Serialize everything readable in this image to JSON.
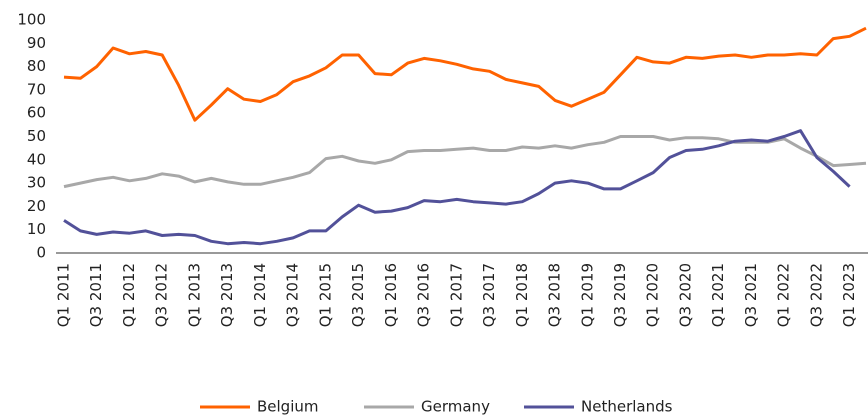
{
  "chart_data": {
    "type": "line",
    "categories": [
      "Q1 2011",
      null,
      "Q3 2011",
      null,
      "Q1 2012",
      null,
      "Q3 2012",
      null,
      "Q1 2013",
      null,
      "Q3 2013",
      null,
      "Q1 2014",
      null,
      "Q3 2014",
      null,
      "Q1 2015",
      null,
      "Q3 2015",
      null,
      "Q1 2016",
      null,
      "Q3 2016",
      null,
      "Q1 2017",
      null,
      "Q3 2017",
      null,
      "Q1 2018",
      null,
      "Q3 2018",
      null,
      "Q1 2019",
      null,
      "Q3 2019",
      null,
      "Q1 2020",
      null,
      "Q3 2020",
      null,
      "Q1 2021",
      null,
      "Q3 2021",
      null,
      "Q1 2022",
      null,
      "Q3 2022",
      null,
      "Q1 2023",
      null
    ],
    "series": [
      {
        "name": "Belgium",
        "color": "#ff6200",
        "values": [
          75.5,
          75,
          80,
          88,
          85.5,
          86.5,
          85,
          72,
          57,
          63.5,
          70.5,
          66,
          65,
          68,
          73.5,
          76,
          79.5,
          85,
          85,
          77,
          76.5,
          81.5,
          83.5,
          82.5,
          81,
          79,
          78,
          74.5,
          73,
          71.5,
          65.5,
          63,
          66,
          69,
          76.5,
          84,
          82,
          81.5,
          84,
          83.5,
          84.5,
          85,
          84,
          85,
          85,
          85.5,
          85,
          92,
          93,
          96.5
        ]
      },
      {
        "name": "Germany",
        "color": "#a8a8a8",
        "values": [
          28.5,
          30,
          31.5,
          32.5,
          31,
          32,
          34,
          33,
          30.5,
          32,
          30.5,
          29.5,
          29.5,
          31,
          32.5,
          34.5,
          40.5,
          41.5,
          39.5,
          38.5,
          40,
          43.5,
          44,
          44,
          44.5,
          45,
          44,
          44,
          45.5,
          45,
          46,
          45,
          46.5,
          47.5,
          50,
          50,
          50,
          48.5,
          49.5,
          49.5,
          49,
          47.5,
          47.5,
          47.5,
          49,
          45,
          41.5,
          37.5,
          38,
          38.5
        ]
      },
      {
        "name": "Netherlands",
        "color": "#525199",
        "values": [
          14,
          9.5,
          8,
          9,
          8.5,
          9.5,
          7.5,
          8,
          7.5,
          5,
          4,
          4.5,
          4,
          5,
          6.5,
          9.5,
          9.5,
          15.5,
          20.5,
          17.5,
          18,
          19.5,
          22.5,
          22,
          23,
          22,
          21.5,
          21,
          22,
          25.5,
          30,
          31,
          30,
          27.5,
          27.5,
          31,
          34.5,
          41,
          44,
          44.5,
          46,
          48,
          48.5,
          48,
          50,
          52.5,
          41,
          35,
          28.5,
          null
        ]
      }
    ],
    "ylim": [
      0,
      100
    ],
    "yticks": [
      0,
      10,
      20,
      30,
      40,
      50,
      60,
      70,
      80,
      90,
      100
    ],
    "grid": false,
    "legend": "bottom"
  }
}
